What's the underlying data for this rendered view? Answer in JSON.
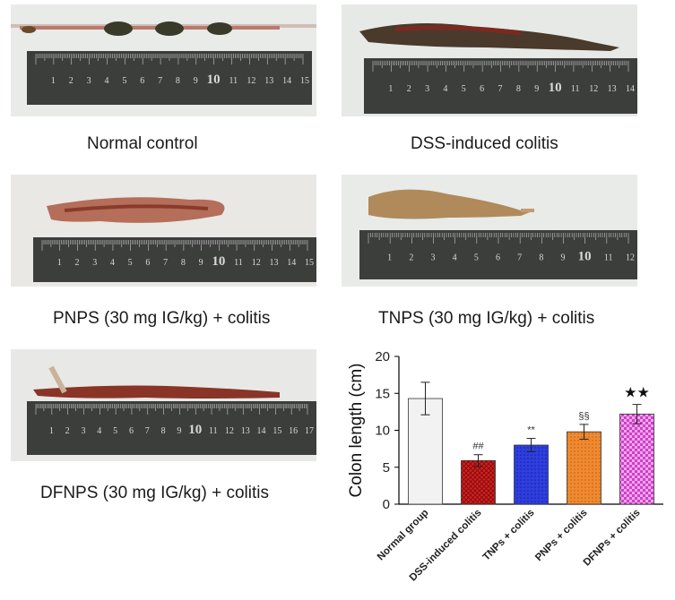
{
  "photos": [
    {
      "caption": "Normal control",
      "ruler_labels": [
        "1",
        "2",
        "3",
        "4",
        "5",
        "6",
        "7",
        "8",
        "9",
        "10",
        "11",
        "12",
        "13",
        "14",
        "15"
      ]
    },
    {
      "caption": "DSS-induced colitis",
      "ruler_labels": [
        "1",
        "2",
        "3",
        "4",
        "5",
        "6",
        "7",
        "8",
        "9",
        "10",
        "11",
        "12",
        "13",
        "14"
      ]
    },
    {
      "caption": "PNPS (30 mg IG/kg) + colitis",
      "ruler_labels": [
        "1",
        "2",
        "3",
        "4",
        "5",
        "6",
        "7",
        "8",
        "9",
        "10",
        "11",
        "12",
        "13",
        "14",
        "15"
      ]
    },
    {
      "caption": "TNPS (30 mg IG/kg) + colitis",
      "ruler_labels": [
        "1",
        "2",
        "3",
        "4",
        "5",
        "6",
        "7",
        "8",
        "9",
        "10",
        "11",
        "12"
      ]
    },
    {
      "caption": "DFNPS (30 mg IG/kg) + colitis",
      "ruler_labels": [
        "1",
        "2",
        "3",
        "4",
        "5",
        "6",
        "7",
        "8",
        "9",
        "10",
        "11",
        "12",
        "13",
        "14",
        "15",
        "16",
        "17"
      ]
    }
  ],
  "chart_data": {
    "type": "bar",
    "title": "",
    "xlabel": "",
    "ylabel": "Colon length  (cm)",
    "ylim": [
      0,
      20
    ],
    "yticks": [
      0,
      5,
      10,
      15,
      20
    ],
    "categories": [
      "Normal group",
      "DSS-induced colitis",
      "TNPs + colitis",
      "PNPs + colitis",
      "DFNPs + colitis"
    ],
    "values": [
      14.3,
      5.9,
      8.0,
      9.8,
      12.2
    ],
    "errors": [
      2.2,
      0.8,
      0.9,
      1.0,
      1.3
    ],
    "annotations": [
      "",
      "##",
      "**",
      "§§",
      "★★"
    ],
    "colors": [
      "#f2f2f2",
      "#d42020",
      "#2e3ee0",
      "#f08a30",
      "#e060d8"
    ],
    "patterns": [
      "none",
      "cross",
      "dots",
      "dots",
      "check"
    ]
  }
}
